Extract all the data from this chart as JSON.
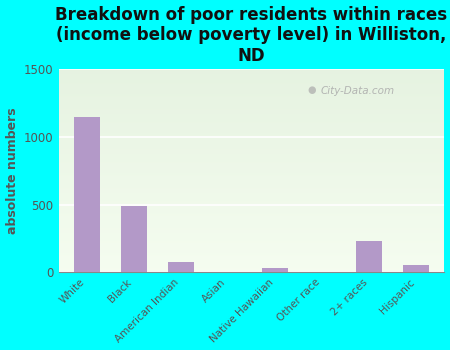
{
  "title": "Breakdown of poor residents within races\n(income below poverty level) in Williston,\nND",
  "categories": [
    "White",
    "Black",
    "American Indian",
    "Asian",
    "Native Hawaiian",
    "Other race",
    "2+ races",
    "Hispanic"
  ],
  "values": [
    1150,
    490,
    75,
    0,
    35,
    0,
    230,
    50
  ],
  "bar_color": "#b399c8",
  "ylabel": "absolute numbers",
  "ylim": [
    0,
    1500
  ],
  "yticks": [
    0,
    500,
    1000,
    1500
  ],
  "background_outer": "#00ffff",
  "title_fontsize": 12,
  "ylabel_fontsize": 9,
  "watermark": "City-Data.com"
}
